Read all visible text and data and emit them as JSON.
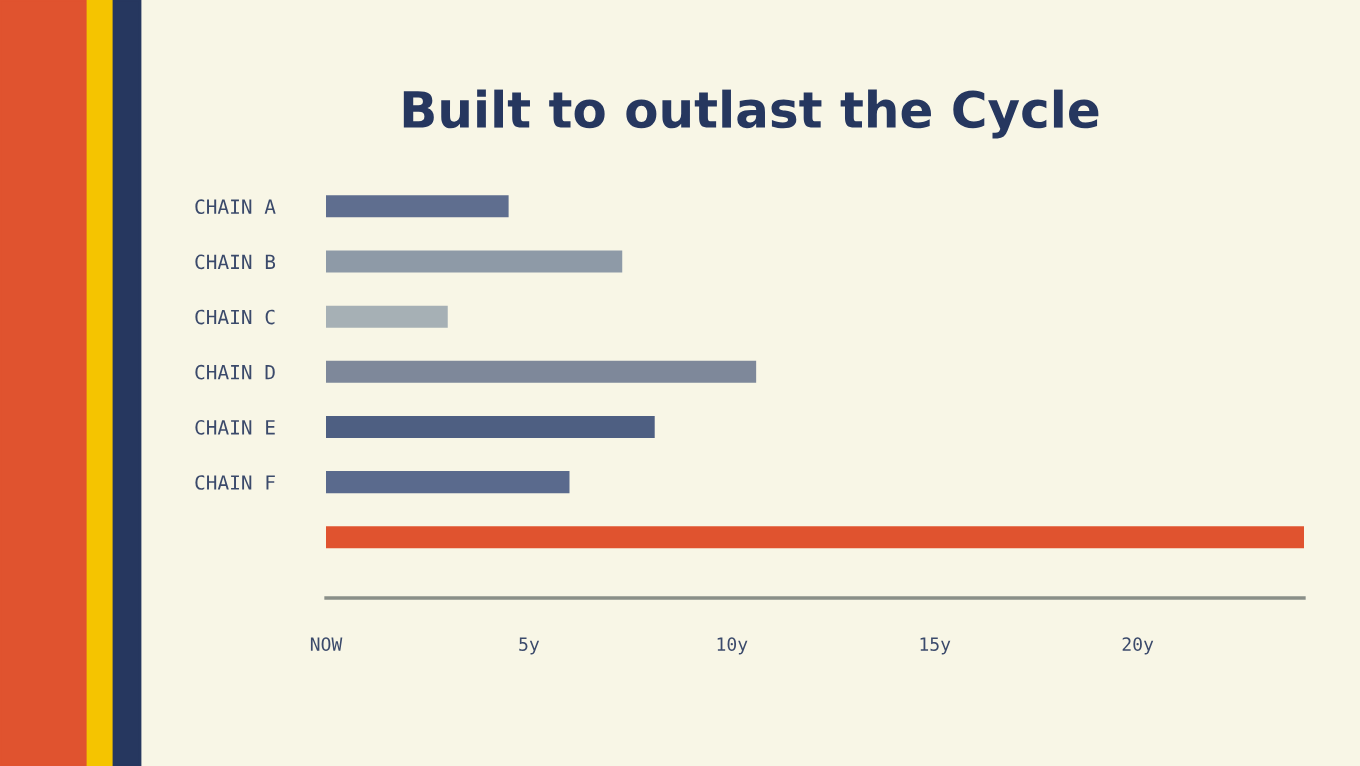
{
  "chart_data": {
    "type": "bar",
    "orientation": "horizontal",
    "title": "Built to outlast the Cycle",
    "categories": [
      "CHAIN A",
      "CHAIN B",
      "CHAIN C",
      "CHAIN D",
      "CHAIN E",
      "CHAIN F",
      null
    ],
    "values": [
      4.5,
      7.3,
      3.0,
      10.6,
      8.1,
      6.0,
      24.1
    ],
    "colors": [
      "#5f6e8f",
      "#8e9aa7",
      "#a6b0b5",
      "#7e889a",
      "#4e5f82",
      "#5a6a8d",
      "#e0532f"
    ],
    "xlim": [
      0,
      24.1
    ],
    "xticks": [
      {
        "value": 0,
        "label": "NOW"
      },
      {
        "value": 5,
        "label": "5y"
      },
      {
        "value": 10,
        "label": "10y"
      },
      {
        "value": 15,
        "label": "15y"
      },
      {
        "value": 20,
        "label": "20y"
      }
    ],
    "grid": false,
    "legend": false
  }
}
